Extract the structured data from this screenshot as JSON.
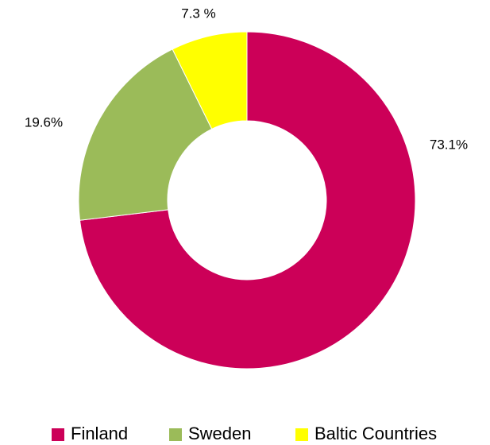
{
  "chart_data": {
    "type": "pie",
    "categories": [
      "Finland",
      "Sweden",
      "Baltic Countries"
    ],
    "values": [
      73.1,
      19.6,
      7.3
    ],
    "value_labels": [
      "73.1%",
      "19.6%",
      "7.3 %"
    ],
    "colors": [
      "#cc0058",
      "#9bbb59",
      "#ffff00"
    ],
    "donut": true,
    "legend": "bottom"
  }
}
